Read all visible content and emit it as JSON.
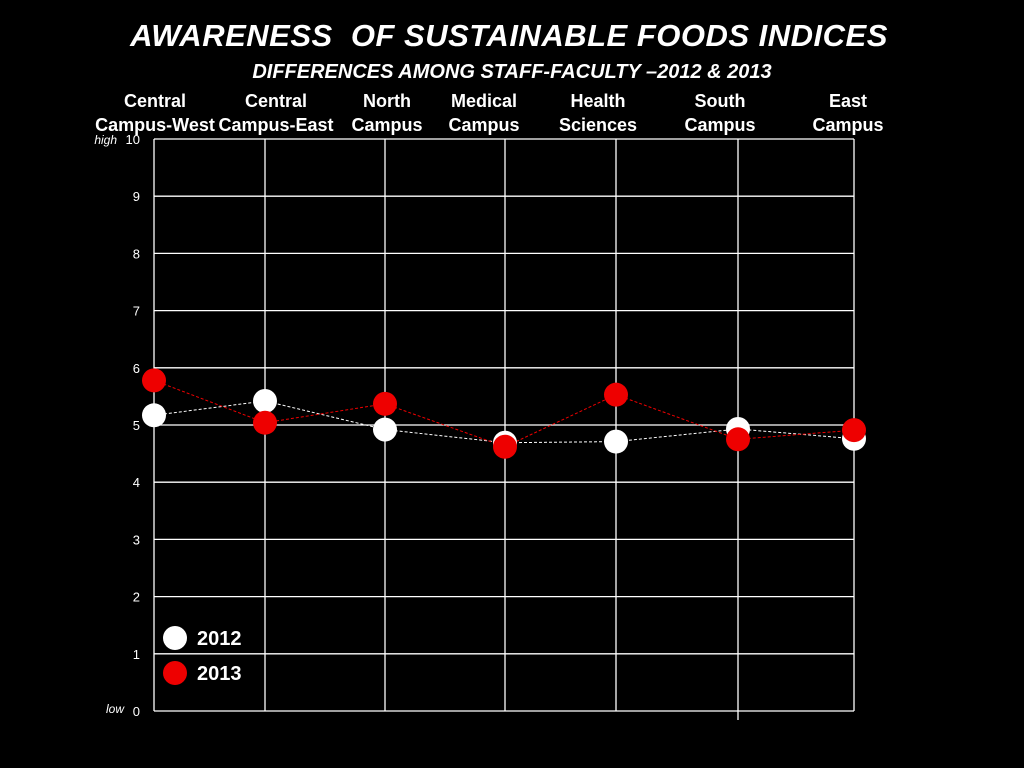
{
  "chart_data": {
    "type": "line",
    "title": "AWARENESS  OF SUSTAINABLE FOODS INDICES",
    "subtitle": "DIFFERENCES AMONG STAFF-FACULTY –2012 & 2013",
    "categories": [
      [
        "Central",
        "Campus-West"
      ],
      [
        "Central",
        "Campus-East"
      ],
      [
        "North",
        "Campus"
      ],
      [
        "Medical",
        "Campus"
      ],
      [
        "Health",
        "Sciences"
      ],
      [
        "South",
        "Campus"
      ],
      [
        "East",
        "Campus"
      ]
    ],
    "ylim": [
      0,
      10
    ],
    "yticks": [
      "0",
      "1",
      "2",
      "3",
      "4",
      "5",
      "6",
      "7",
      "8",
      "9",
      "10"
    ],
    "y_high_label": "high",
    "y_low_label": "low",
    "grid": true,
    "legend_position": "bottom-left",
    "series": [
      {
        "name": "2012",
        "color": "#ffffff",
        "values": [
          5.17,
          5.42,
          4.92,
          4.69,
          4.71,
          4.93,
          4.76
        ]
      },
      {
        "name": "2013",
        "color": "#ee0000",
        "values": [
          5.78,
          5.04,
          5.37,
          4.62,
          5.53,
          4.75,
          4.91
        ]
      }
    ]
  }
}
